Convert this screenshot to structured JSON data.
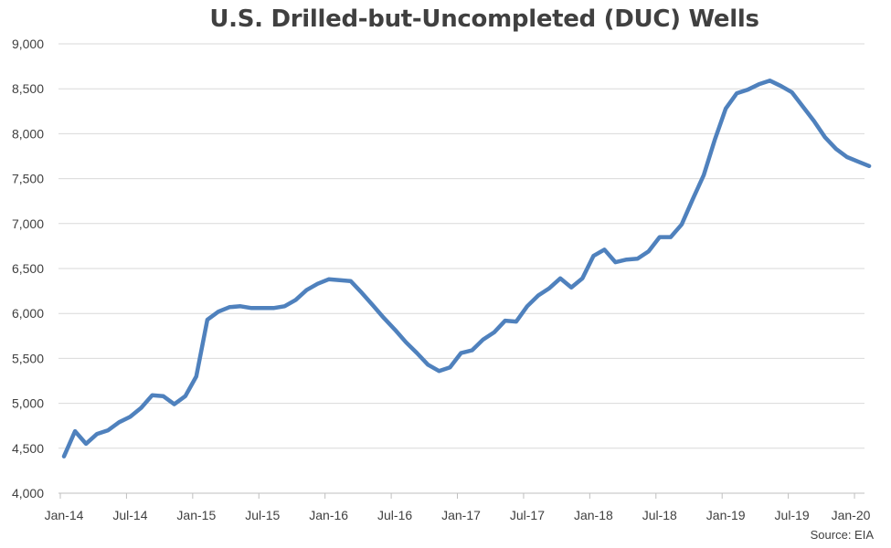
{
  "chart_data": {
    "type": "line",
    "title": "U.S. Drilled-but-Uncompleted (DUC) Wells",
    "source": "Source: EIA",
    "xlabel": "",
    "ylabel": "",
    "ylim": [
      4000,
      9000
    ],
    "yticks": [
      4000,
      4500,
      5000,
      5500,
      6000,
      6500,
      7000,
      7500,
      8000,
      8500,
      9000
    ],
    "ytick_labels": [
      "4,000",
      "4,500",
      "5,000",
      "5,500",
      "6,000",
      "6,500",
      "7,000",
      "7,500",
      "8,000",
      "8,500",
      "9,000"
    ],
    "xtick_labels": [
      "Jan-14",
      "Jul-14",
      "Jan-15",
      "Jul-15",
      "Jan-16",
      "Jul-16",
      "Jan-17",
      "Jul-17",
      "Jan-18",
      "Jul-18",
      "Jan-19",
      "Jul-19",
      "Jan-20"
    ],
    "grid": true,
    "line_color": "#4f81bd",
    "x": [
      "2014-01",
      "2014-02",
      "2014-03",
      "2014-04",
      "2014-05",
      "2014-06",
      "2014-07",
      "2014-08",
      "2014-09",
      "2014-10",
      "2014-11",
      "2014-12",
      "2015-01",
      "2015-02",
      "2015-03",
      "2015-04",
      "2015-05",
      "2015-06",
      "2015-07",
      "2015-08",
      "2015-09",
      "2015-10",
      "2015-11",
      "2015-12",
      "2016-01",
      "2016-02",
      "2016-03",
      "2016-04",
      "2016-05",
      "2016-06",
      "2016-07",
      "2016-08",
      "2016-09",
      "2016-10",
      "2016-11",
      "2016-12",
      "2017-01",
      "2017-02",
      "2017-03",
      "2017-04",
      "2017-05",
      "2017-06",
      "2017-07",
      "2017-08",
      "2017-09",
      "2017-10",
      "2017-11",
      "2017-12",
      "2018-01",
      "2018-02",
      "2018-03",
      "2018-04",
      "2018-05",
      "2018-06",
      "2018-07",
      "2018-08",
      "2018-09",
      "2018-10",
      "2018-11",
      "2018-12",
      "2019-01",
      "2019-02",
      "2019-03",
      "2019-04",
      "2019-05",
      "2019-06",
      "2019-07",
      "2019-08",
      "2019-09",
      "2019-10",
      "2019-11",
      "2019-12",
      "2020-01",
      "2020-02"
    ],
    "series": [
      {
        "values": [
          4410,
          4690,
          4550,
          4660,
          4700,
          4790,
          4850,
          4950,
          5090,
          5080,
          4990,
          5080,
          5300,
          5930,
          6020,
          6070,
          6080,
          6060,
          6060,
          6060,
          6080,
          6150,
          6260,
          6330,
          6380,
          6370,
          6360,
          6230,
          6090,
          5950,
          5820,
          5680,
          5560,
          5430,
          5360,
          5400,
          5560,
          5590,
          5710,
          5790,
          5920,
          5910,
          6080,
          6200,
          6280,
          6390,
          6290,
          6390,
          6640,
          6710,
          6570,
          6600,
          6610,
          6690,
          6850,
          6850,
          6990,
          7270,
          7540,
          7930,
          8280,
          8450,
          8490,
          8550,
          8590,
          8530,
          8460,
          8300,
          8140,
          7960,
          7830,
          7740,
          7690,
          7640
        ]
      }
    ]
  }
}
